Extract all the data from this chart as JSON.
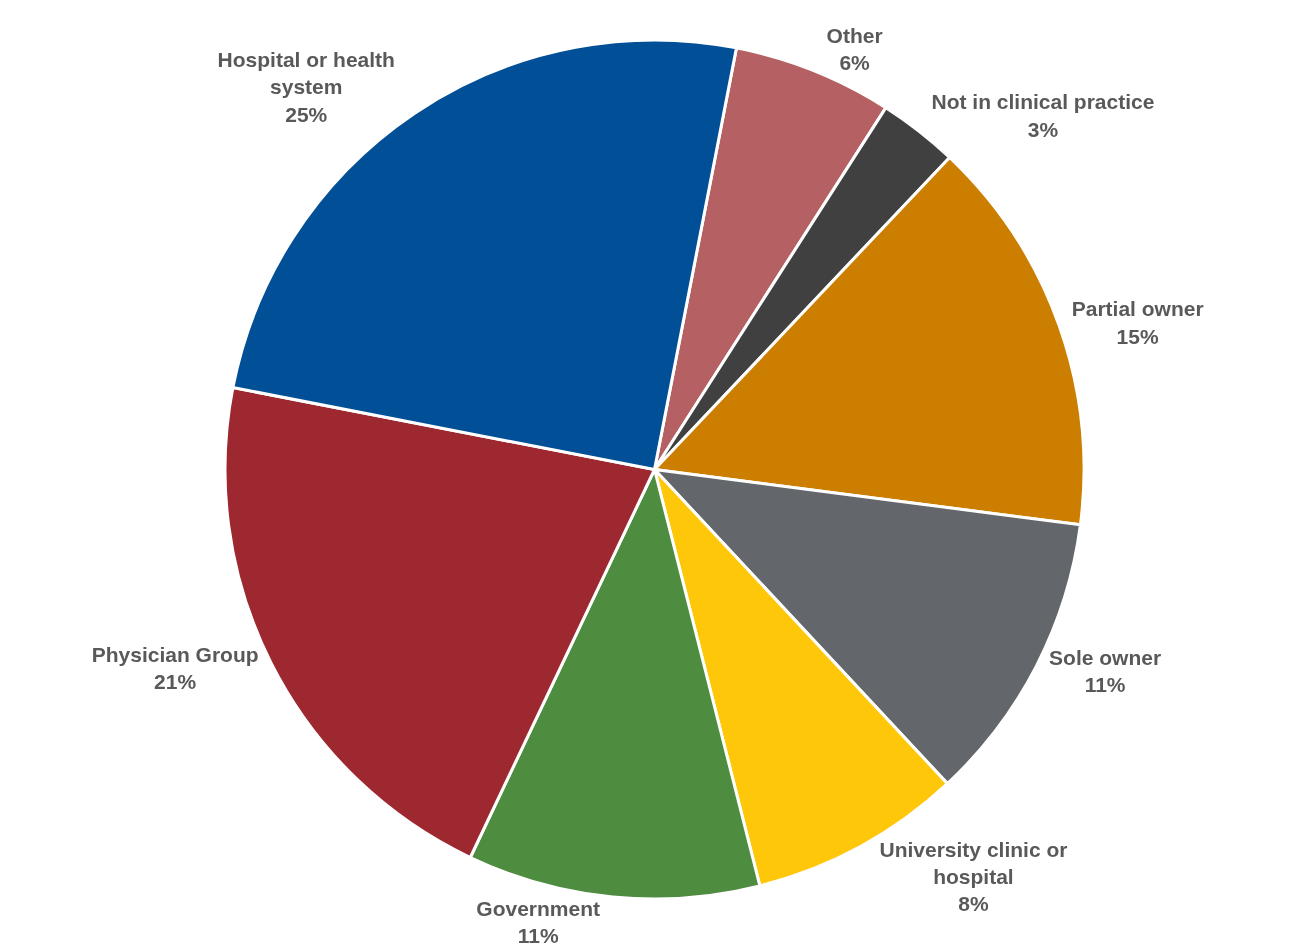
{
  "chart_data": {
    "type": "pie",
    "categories": [
      "Other",
      "Not in clinical practice",
      "Partial owner",
      "Sole owner",
      "University clinic or hospital",
      "Government",
      "Physician Group",
      "Hospital or health system"
    ],
    "values": [
      6,
      3,
      15,
      11,
      8,
      11,
      21,
      25
    ],
    "value_labels": [
      "6%",
      "3%",
      "15%",
      "11%",
      "8%",
      "11%",
      "21%",
      "25%"
    ],
    "colors": [
      "#b56063",
      "#404040",
      "#cc7e00",
      "#63666a",
      "#ffc709",
      "#4e8c3f",
      "#9e2830",
      "#014f96"
    ],
    "legend": false
  }
}
